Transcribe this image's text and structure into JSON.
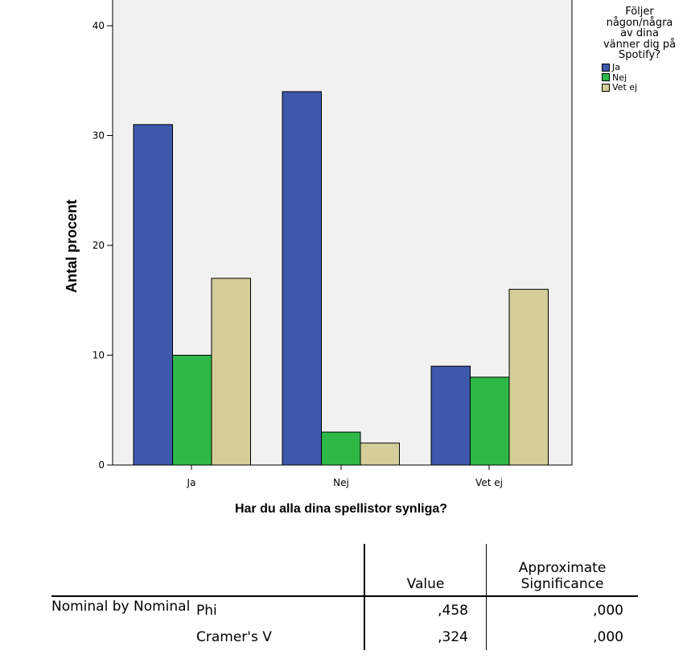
{
  "chart_data": {
    "type": "bar",
    "categories": [
      "Ja",
      "Nej",
      "Vet ej"
    ],
    "series": [
      {
        "name": "Ja",
        "values": [
          31,
          34,
          9
        ],
        "color": "#3e58ac"
      },
      {
        "name": "Nej",
        "values": [
          10,
          3,
          8
        ],
        "color": "#2eb848"
      },
      {
        "name": "Vet ej",
        "values": [
          17,
          2,
          16
        ],
        "color": "#d5ce9a"
      }
    ],
    "xlabel": "Har du alla dina spellistor synliga?",
    "ylabel": "Antal procent",
    "ylim": [
      0,
      40
    ],
    "yticks": [
      0,
      10,
      20,
      30,
      40
    ],
    "legend_title": "Följer\nnågon/några\nav dina\nvänner dig på\nSpotify?",
    "legend_position": "right",
    "plot_background": "#f1f1f1",
    "grid": false
  },
  "table": {
    "headers": [
      "",
      "",
      "Value",
      "Approximate Significance"
    ],
    "row_group": "Nominal by Nominal",
    "rows": [
      {
        "label": "Phi",
        "value": ",458",
        "significance": ",000"
      },
      {
        "label": "Cramer's V",
        "value": ",324",
        "significance": ",000"
      }
    ]
  }
}
